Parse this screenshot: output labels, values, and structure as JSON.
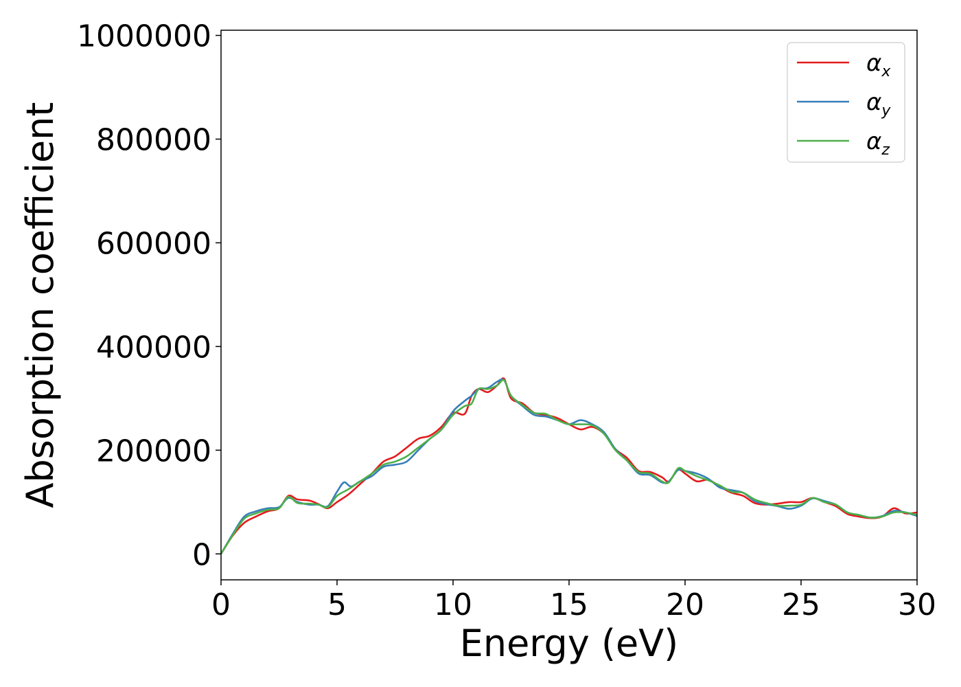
{
  "chart_data": {
    "type": "line",
    "title": "",
    "xlabel": "Energy (eV)",
    "ylabel": "Absorption coefficient",
    "xlim": [
      0,
      30
    ],
    "ylim": [
      -50000,
      1010000
    ],
    "xticks": [
      0,
      5,
      10,
      15,
      20,
      25,
      30
    ],
    "yticks": [
      0,
      200000,
      400000,
      600000,
      800000,
      1000000
    ],
    "xtick_labels": [
      "0",
      "5",
      "10",
      "15",
      "20",
      "25",
      "30"
    ],
    "ytick_labels": [
      "0",
      "200000",
      "400000",
      "600000",
      "800000",
      "1000000"
    ],
    "grid": false,
    "legend_position": "top-right",
    "series": [
      {
        "name": "αx",
        "legend_base": "α",
        "legend_sub": "x",
        "color": "#e41a1c",
        "x": [
          0,
          0.5,
          1,
          1.5,
          2,
          2.5,
          2.9,
          3.3,
          3.8,
          4.2,
          4.6,
          5,
          5.5,
          6,
          6.5,
          7,
          7.5,
          8,
          8.5,
          9,
          9.5,
          10,
          10.5,
          10.8,
          11.1,
          11.5,
          11.9,
          12.2,
          12.5,
          13,
          13.5,
          14,
          14.5,
          15,
          15.5,
          16,
          16.5,
          17,
          17.5,
          18,
          18.5,
          19,
          19.3,
          19.7,
          20,
          20.5,
          21,
          21.5,
          22,
          22.5,
          23,
          23.5,
          24,
          24.5,
          25,
          25.5,
          26,
          26.5,
          27,
          27.5,
          28,
          28.5,
          29,
          29.5,
          30
        ],
        "y": [
          0,
          35000,
          60000,
          72000,
          82000,
          88000,
          112000,
          105000,
          103000,
          96000,
          88000,
          100000,
          115000,
          135000,
          155000,
          178000,
          188000,
          205000,
          222000,
          228000,
          245000,
          272000,
          270000,
          305000,
          318000,
          312000,
          325000,
          338000,
          300000,
          290000,
          272000,
          268000,
          262000,
          250000,
          240000,
          245000,
          232000,
          202000,
          185000,
          160000,
          158000,
          148000,
          140000,
          162000,
          155000,
          140000,
          143000,
          130000,
          118000,
          112000,
          98000,
          95000,
          97000,
          100000,
          100000,
          108000,
          100000,
          92000,
          77000,
          72000,
          69000,
          72000,
          88000,
          78000,
          80000
        ]
      },
      {
        "name": "αy",
        "legend_base": "α",
        "legend_sub": "y",
        "color": "#377eb8",
        "x": [
          0,
          0.5,
          1,
          1.5,
          2,
          2.5,
          2.9,
          3.3,
          3.8,
          4.2,
          4.6,
          5,
          5.3,
          5.6,
          6,
          6.5,
          7,
          7.5,
          8,
          8.5,
          9,
          9.5,
          10,
          10.5,
          10.8,
          11.1,
          11.5,
          11.9,
          12.2,
          12.5,
          13,
          13.5,
          14,
          14.5,
          15,
          15.5,
          16,
          16.5,
          17,
          17.5,
          18,
          18.5,
          19,
          19.3,
          19.7,
          20,
          20.5,
          21,
          21.5,
          22,
          22.5,
          23,
          23.5,
          24,
          24.5,
          25,
          25.5,
          26,
          26.5,
          27,
          27.5,
          28,
          28.5,
          29,
          29.5,
          30
        ],
        "y": [
          0,
          38000,
          72000,
          82000,
          88000,
          90000,
          108000,
          100000,
          95000,
          95000,
          92000,
          120000,
          138000,
          130000,
          140000,
          150000,
          168000,
          172000,
          178000,
          200000,
          222000,
          240000,
          275000,
          295000,
          305000,
          318000,
          320000,
          332000,
          335000,
          305000,
          285000,
          268000,
          265000,
          258000,
          250000,
          258000,
          250000,
          235000,
          202000,
          180000,
          155000,
          152000,
          138000,
          140000,
          162000,
          160000,
          155000,
          145000,
          128000,
          123000,
          118000,
          102000,
          96000,
          92000,
          87000,
          93000,
          107000,
          102000,
          95000,
          80000,
          75000,
          70000,
          73000,
          83000,
          80000,
          73000
        ]
      },
      {
        "name": "αz",
        "legend_base": "α",
        "legend_sub": "z",
        "color": "#4daf4a",
        "x": [
          0,
          0.5,
          1,
          1.5,
          2,
          2.5,
          2.9,
          3.3,
          3.8,
          4.2,
          4.6,
          5,
          5.5,
          6,
          6.5,
          7,
          7.5,
          8,
          8.5,
          9,
          9.5,
          10,
          10.5,
          10.8,
          11.1,
          11.5,
          11.9,
          12.2,
          12.5,
          13,
          13.5,
          14,
          14.5,
          15,
          15.5,
          16,
          16.5,
          17,
          17.5,
          18,
          18.5,
          19,
          19.3,
          19.7,
          20,
          20.5,
          21,
          21.5,
          22,
          22.5,
          23,
          23.5,
          24,
          24.5,
          25,
          25.5,
          26,
          26.5,
          27,
          27.5,
          28,
          28.5,
          29,
          29.5,
          30
        ],
        "y": [
          0,
          36000,
          68000,
          78000,
          85000,
          88000,
          110000,
          98000,
          97000,
          95000,
          90000,
          112000,
          125000,
          140000,
          155000,
          172000,
          178000,
          188000,
          205000,
          222000,
          240000,
          268000,
          285000,
          290000,
          318000,
          318000,
          325000,
          335000,
          305000,
          287000,
          272000,
          270000,
          258000,
          250000,
          250000,
          248000,
          232000,
          200000,
          180000,
          158000,
          155000,
          140000,
          138000,
          165000,
          160000,
          150000,
          142000,
          132000,
          120000,
          118000,
          105000,
          98000,
          93000,
          93000,
          95000,
          108000,
          100000,
          95000,
          80000,
          75000,
          70000,
          72000,
          80000,
          80000,
          75000
        ]
      }
    ]
  }
}
